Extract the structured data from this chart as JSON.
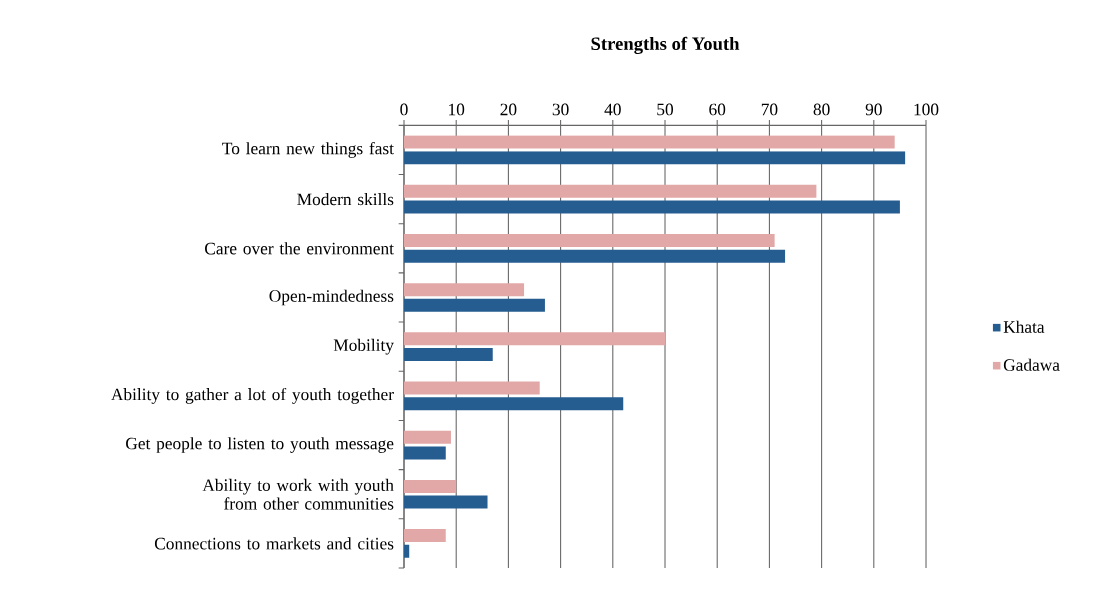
{
  "chart_data": {
    "type": "bar",
    "orientation": "horizontal",
    "title": "Strengths of Youth",
    "categories": [
      "To learn new things fast",
      "Modern skills",
      "Care over the environment",
      "Open-mindedness",
      "Mobility",
      "Ability to gather a lot of youth together",
      "Get people to listen to youth message",
      "Ability to work with youth from other communities",
      "Connections to markets and cities"
    ],
    "series": [
      {
        "name": "Khata",
        "color": "#265d91",
        "values": [
          96,
          95,
          73,
          27,
          17,
          42,
          8,
          16,
          1
        ]
      },
      {
        "name": "Gadawa",
        "color": "#e2a8a7",
        "values": [
          94,
          79,
          71,
          23,
          50,
          26,
          9,
          10,
          8
        ]
      }
    ],
    "xlim": [
      0,
      100
    ],
    "xticks": [
      0,
      10,
      20,
      30,
      40,
      50,
      60,
      70,
      80,
      90,
      100
    ],
    "grid": "x",
    "legend": "right"
  }
}
